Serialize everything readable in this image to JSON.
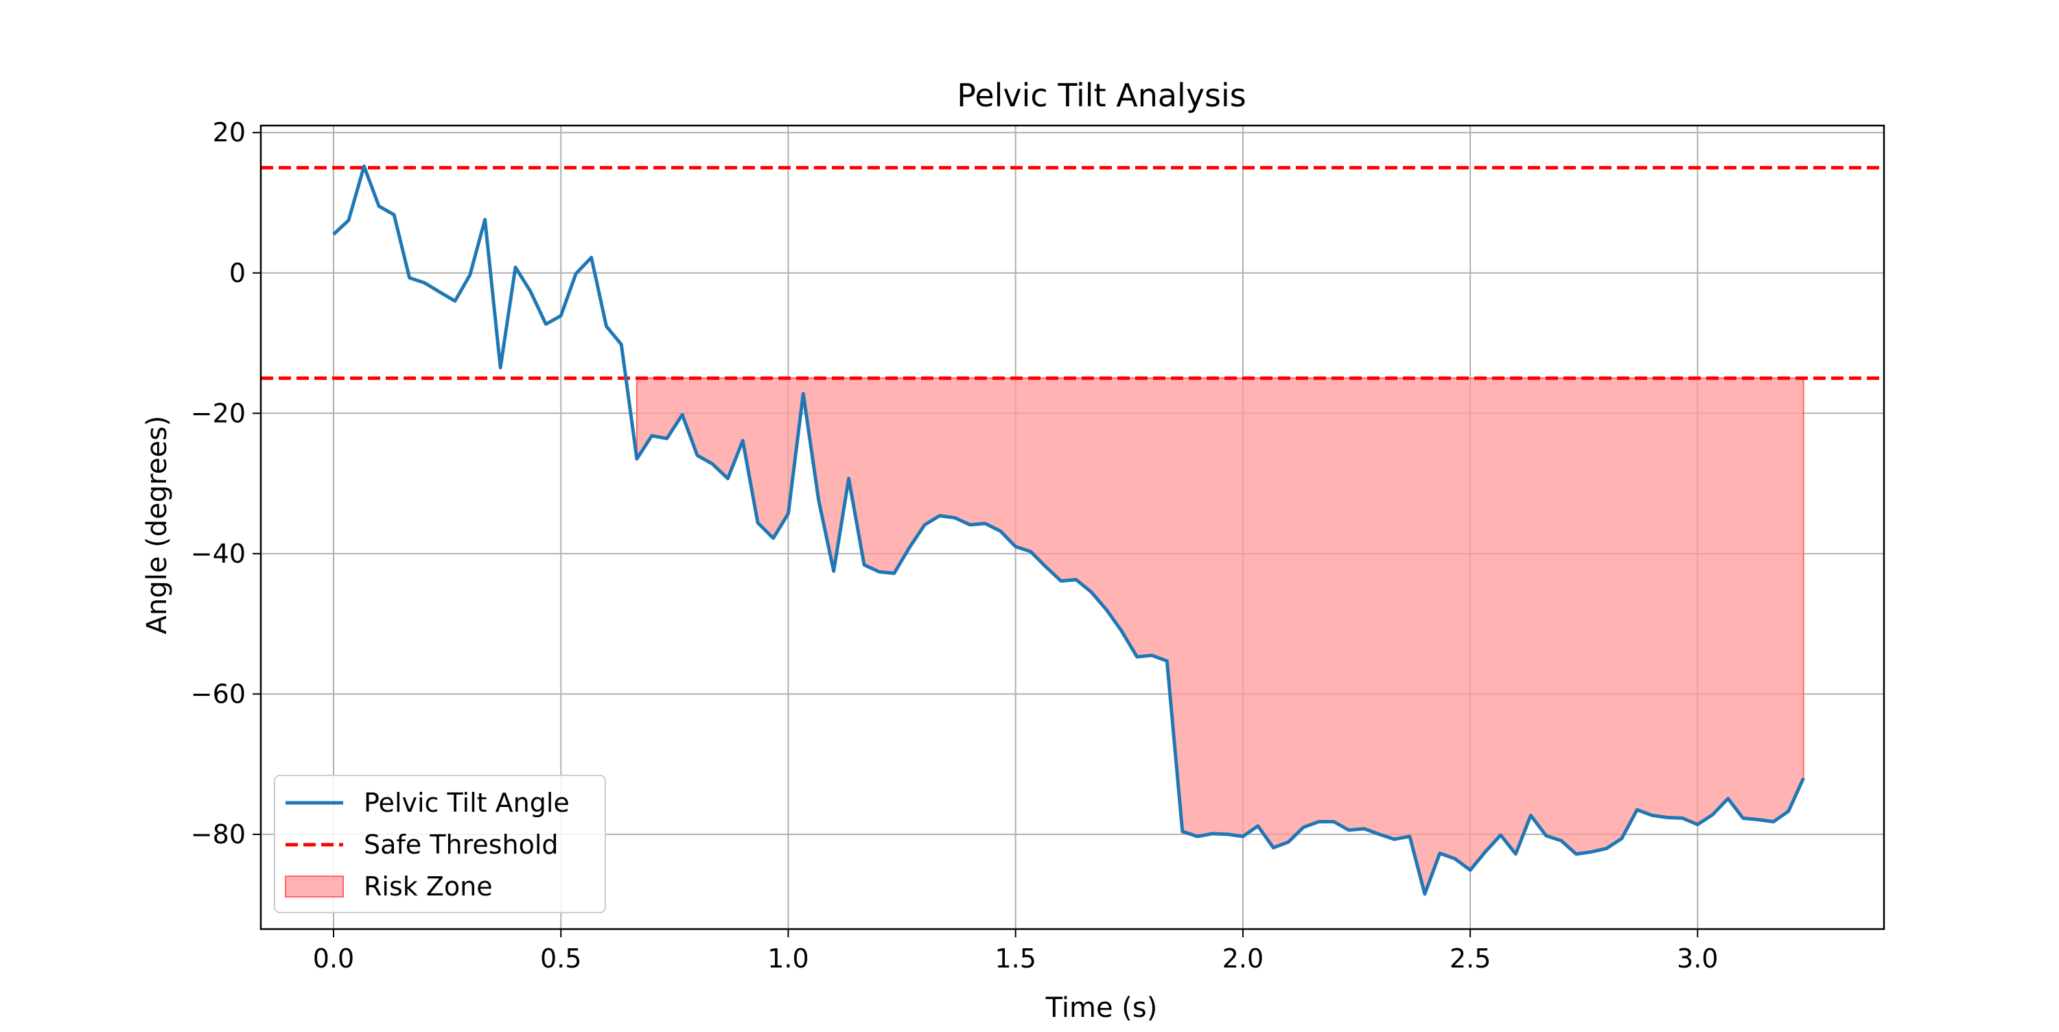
{
  "chart_data": {
    "type": "line",
    "title": "Pelvic Tilt Analysis",
    "xlabel": "Time (s)",
    "ylabel": "Angle (degrees)",
    "xlim": [
      -0.16,
      3.41
    ],
    "ylim": [
      -93.5,
      21
    ],
    "x_ticks": [
      0.0,
      0.5,
      1.0,
      1.5,
      2.0,
      2.5,
      3.0
    ],
    "x_tick_labels": [
      "0.0",
      "0.5",
      "1.0",
      "1.5",
      "2.0",
      "2.5",
      "3.0"
    ],
    "y_ticks": [
      20,
      0,
      -20,
      -40,
      -60,
      -80
    ],
    "y_tick_labels": [
      "20",
      "0",
      "−20",
      "−40",
      "−60",
      "−80"
    ],
    "grid": true,
    "legend_position": "lower-left",
    "thresholds": {
      "upper": 15,
      "lower": -15
    },
    "risk_zone": {
      "from_x": 0.667,
      "to_x": 3.233,
      "ceiling": -15
    },
    "colors": {
      "line": "#1f77b4",
      "threshold": "#ff0000",
      "risk_fill": "#ff9999",
      "risk_edge": "#ff6666",
      "grid": "#b0b0b0"
    },
    "series": [
      {
        "name": "Pelvic Tilt Angle",
        "x": [
          0.0,
          0.033,
          0.067,
          0.1,
          0.133,
          0.167,
          0.2,
          0.233,
          0.267,
          0.3,
          0.333,
          0.367,
          0.4,
          0.433,
          0.467,
          0.5,
          0.533,
          0.567,
          0.6,
          0.633,
          0.667,
          0.7,
          0.733,
          0.767,
          0.8,
          0.833,
          0.867,
          0.9,
          0.933,
          0.967,
          1.0,
          1.033,
          1.067,
          1.1,
          1.133,
          1.167,
          1.2,
          1.233,
          1.267,
          1.3,
          1.333,
          1.367,
          1.4,
          1.433,
          1.467,
          1.5,
          1.533,
          1.567,
          1.6,
          1.633,
          1.667,
          1.7,
          1.733,
          1.767,
          1.8,
          1.833,
          1.867,
          1.9,
          1.933,
          1.967,
          2.0,
          2.033,
          2.067,
          2.1,
          2.133,
          2.167,
          2.2,
          2.233,
          2.267,
          2.3,
          2.333,
          2.367,
          2.4,
          2.433,
          2.467,
          2.5,
          2.533,
          2.567,
          2.6,
          2.633,
          2.667,
          2.7,
          2.733,
          2.767,
          2.8,
          2.833,
          2.867,
          2.9,
          2.933,
          2.967,
          3.0,
          3.033,
          3.067,
          3.1,
          3.133,
          3.167,
          3.2,
          3.233
        ],
        "y": [
          5.5,
          7.5,
          15.2,
          9.5,
          8.3,
          -0.7,
          -1.4,
          -2.7,
          -4.0,
          -0.3,
          7.6,
          -13.5,
          0.8,
          -2.6,
          -7.3,
          -6.1,
          -0.1,
          2.2,
          -7.6,
          -10.2,
          -26.5,
          -23.2,
          -23.6,
          -20.2,
          -26.0,
          -27.2,
          -29.3,
          -23.9,
          -35.6,
          -37.8,
          -34.3,
          -17.2,
          -32.4,
          -42.5,
          -29.3,
          -41.6,
          -42.6,
          -42.8,
          -39.1,
          -35.9,
          -34.6,
          -34.9,
          -35.9,
          -35.7,
          -36.8,
          -39.0,
          -39.7,
          -41.9,
          -43.9,
          -43.7,
          -45.5,
          -48.0,
          -51.0,
          -54.7,
          -54.5,
          -55.3,
          -79.6,
          -80.3,
          -79.9,
          -80.0,
          -80.3,
          -78.8,
          -81.9,
          -81.1,
          -79.0,
          -78.2,
          -78.2,
          -79.4,
          -79.2,
          -80.0,
          -80.7,
          -80.3,
          -88.5,
          -82.7,
          -83.5,
          -85.1,
          -82.5,
          -80.1,
          -82.8,
          -77.3,
          -80.2,
          -80.9,
          -82.8,
          -82.5,
          -82.0,
          -80.6,
          -76.5,
          -77.3,
          -77.6,
          -77.7,
          -78.6,
          -77.2,
          -74.9,
          -77.7,
          -77.9,
          -78.2,
          -76.7,
          -72.0
        ]
      }
    ],
    "legend": [
      {
        "label": "Pelvic Tilt Angle",
        "kind": "line"
      },
      {
        "label": "Safe Threshold",
        "kind": "dashed"
      },
      {
        "label": "Risk Zone",
        "kind": "patch"
      }
    ]
  }
}
